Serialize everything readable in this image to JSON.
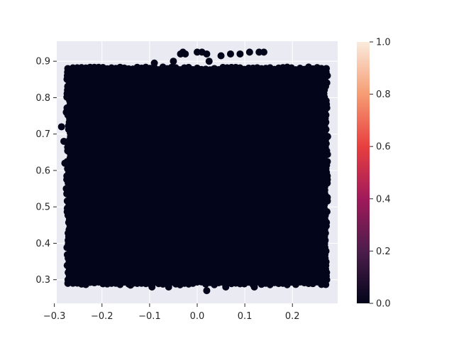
{
  "chart_data": {
    "type": "scatter",
    "title": "",
    "xlabel": "",
    "ylabel": "",
    "xlim": [
      -0.295,
      0.295
    ],
    "ylim": [
      0.235,
      0.955
    ],
    "grid": true,
    "x_ticks": [
      -0.3,
      -0.2,
      -0.1,
      0.0,
      0.1,
      0.2
    ],
    "x_tick_labels": [
      "−0.3",
      "−0.2",
      "−0.1",
      "0.0",
      "0.1",
      "0.2"
    ],
    "y_ticks": [
      0.3,
      0.4,
      0.5,
      0.6,
      0.7,
      0.8,
      0.9
    ],
    "y_tick_labels": [
      "0.3",
      "0.4",
      "0.5",
      "0.6",
      "0.7",
      "0.8",
      "0.9"
    ],
    "point_color": "#03051a",
    "dense_region": {
      "x_range": [
        -0.27,
        0.27
      ],
      "y_range": [
        0.29,
        0.88
      ]
    },
    "outlier_points": [
      {
        "x": -0.035,
        "y": 0.92
      },
      {
        "x": -0.03,
        "y": 0.925
      },
      {
        "x": -0.025,
        "y": 0.92
      },
      {
        "x": 0.0,
        "y": 0.925
      },
      {
        "x": 0.01,
        "y": 0.925
      },
      {
        "x": 0.02,
        "y": 0.92
      },
      {
        "x": 0.05,
        "y": 0.915
      },
      {
        "x": 0.07,
        "y": 0.92
      },
      {
        "x": 0.09,
        "y": 0.92
      },
      {
        "x": 0.11,
        "y": 0.925
      },
      {
        "x": 0.13,
        "y": 0.925
      },
      {
        "x": 0.14,
        "y": 0.925
      },
      {
        "x": 0.025,
        "y": 0.9
      },
      {
        "x": -0.05,
        "y": 0.9
      },
      {
        "x": -0.09,
        "y": 0.895
      },
      {
        "x": 0.02,
        "y": 0.27
      },
      {
        "x": -0.06,
        "y": 0.28
      },
      {
        "x": -0.095,
        "y": 0.28
      },
      {
        "x": 0.06,
        "y": 0.28
      },
      {
        "x": 0.12,
        "y": 0.28
      },
      {
        "x": -0.14,
        "y": 0.285
      },
      {
        "x": -0.18,
        "y": 0.29
      },
      {
        "x": 0.18,
        "y": 0.29
      },
      {
        "x": -0.285,
        "y": 0.72
      },
      {
        "x": -0.28,
        "y": 0.68
      },
      {
        "x": -0.275,
        "y": 0.76
      },
      {
        "x": -0.278,
        "y": 0.62
      },
      {
        "x": -0.275,
        "y": 0.55
      }
    ],
    "colorbar": {
      "min": 0.0,
      "max": 1.0,
      "ticks": [
        0.0,
        0.2,
        0.4,
        0.6,
        0.8,
        1.0
      ],
      "tick_labels": [
        "0.0",
        "0.2",
        "0.4",
        "0.6",
        "0.8",
        "1.0"
      ],
      "colormap": "rocket",
      "stops": [
        "#03051a",
        "#4c1d4b",
        "#a11a5b",
        "#e83f3f",
        "#f69c73",
        "#faebdd"
      ]
    }
  }
}
